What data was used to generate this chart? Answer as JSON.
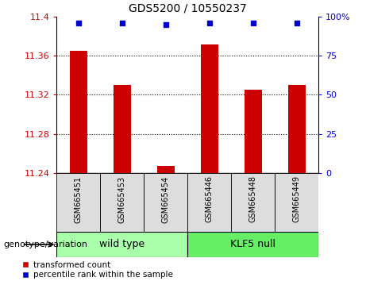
{
  "title": "GDS5200 / 10550237",
  "samples": [
    "GSM665451",
    "GSM665453",
    "GSM665454",
    "GSM665446",
    "GSM665448",
    "GSM665449"
  ],
  "bar_values": [
    11.365,
    11.33,
    11.247,
    11.372,
    11.325,
    11.33
  ],
  "percentile_values": [
    96,
    96,
    95,
    96,
    96,
    96
  ],
  "bar_color": "#cc0000",
  "percentile_color": "#0000cc",
  "ylim": [
    11.24,
    11.4
  ],
  "yticks": [
    11.24,
    11.28,
    11.32,
    11.36,
    11.4
  ],
  "right_ylim": [
    0,
    100
  ],
  "right_yticks": [
    0,
    25,
    50,
    75,
    100
  ],
  "right_ytick_labels": [
    "0",
    "25",
    "50",
    "75",
    "100%"
  ],
  "groups": [
    {
      "label": "wild type",
      "indices": [
        0,
        1,
        2
      ],
      "color": "#aaffaa"
    },
    {
      "label": "KLF5 null",
      "indices": [
        3,
        4,
        5
      ],
      "color": "#66ee66"
    }
  ],
  "genotype_label": "genotype/variation",
  "legend_items": [
    {
      "color": "#cc0000",
      "label": "transformed count"
    },
    {
      "color": "#0000cc",
      "label": "percentile rank within the sample"
    }
  ],
  "tick_color_left": "#cc0000",
  "tick_color_right": "#0000cc",
  "bar_width": 0.4,
  "grid_yticks": [
    11.28,
    11.32,
    11.36
  ],
  "sample_box_color": "#dddddd"
}
